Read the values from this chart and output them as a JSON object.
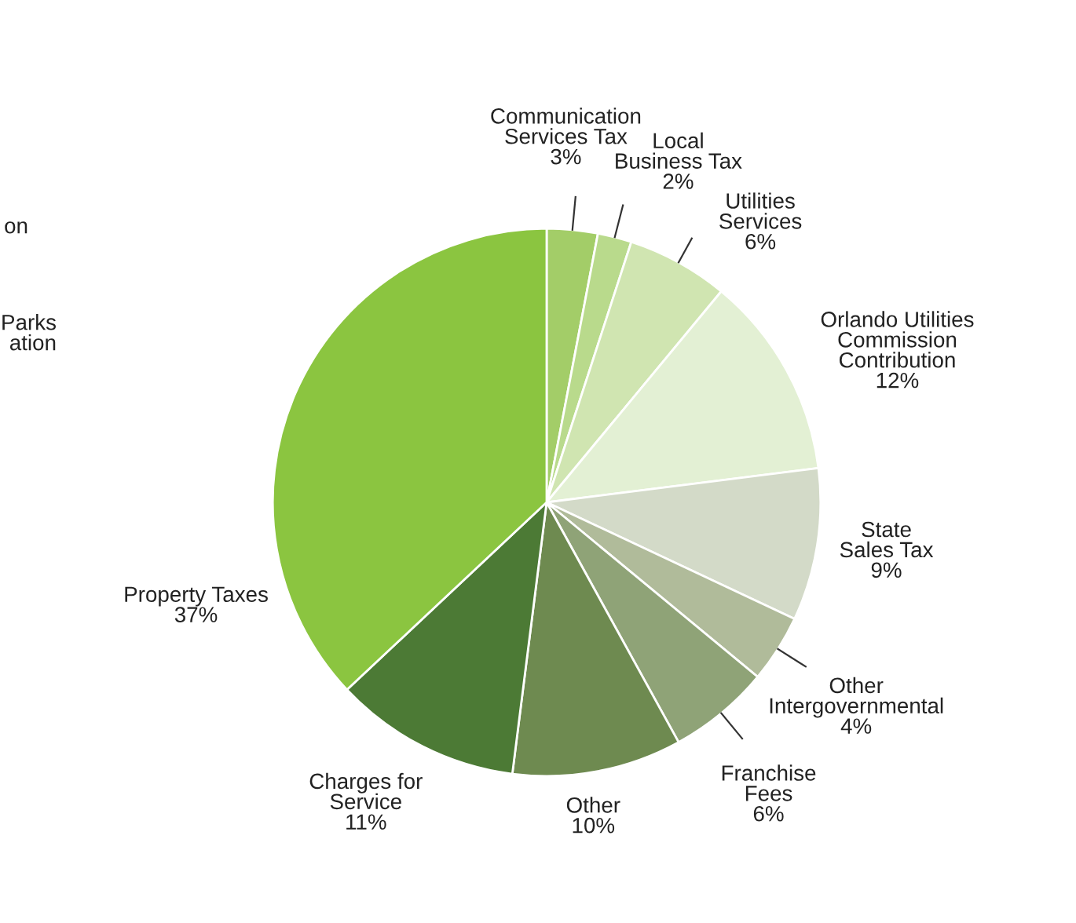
{
  "chart_data": {
    "type": "pie",
    "categories": [
      "Communication\nServices Tax",
      "Local\nBusiness Tax",
      "Utilities\nServices",
      "Orlando Utilities\nCommission\nContribution",
      "State\nSales Tax",
      "Other\nIntergovernmental",
      "Franchise\nFees",
      "Other",
      "Charges for\nService",
      "Property Taxes"
    ],
    "values": [
      3,
      2,
      6,
      12,
      9,
      4,
      6,
      10,
      11,
      37
    ],
    "colors": [
      "#a3cd68",
      "#b9da8c",
      "#d0e5b1",
      "#e3f0d4",
      "#d3dac8",
      "#b0bb9a",
      "#8fa377",
      "#6e8a50",
      "#4c7a35",
      "#8bc540"
    ],
    "value_labels": [
      "3%",
      "2%",
      "6%",
      "12%",
      "9%",
      "4%",
      "6%",
      "10%",
      "11%",
      "37%"
    ],
    "annotations": [
      "on",
      "Parks\nation"
    ]
  }
}
